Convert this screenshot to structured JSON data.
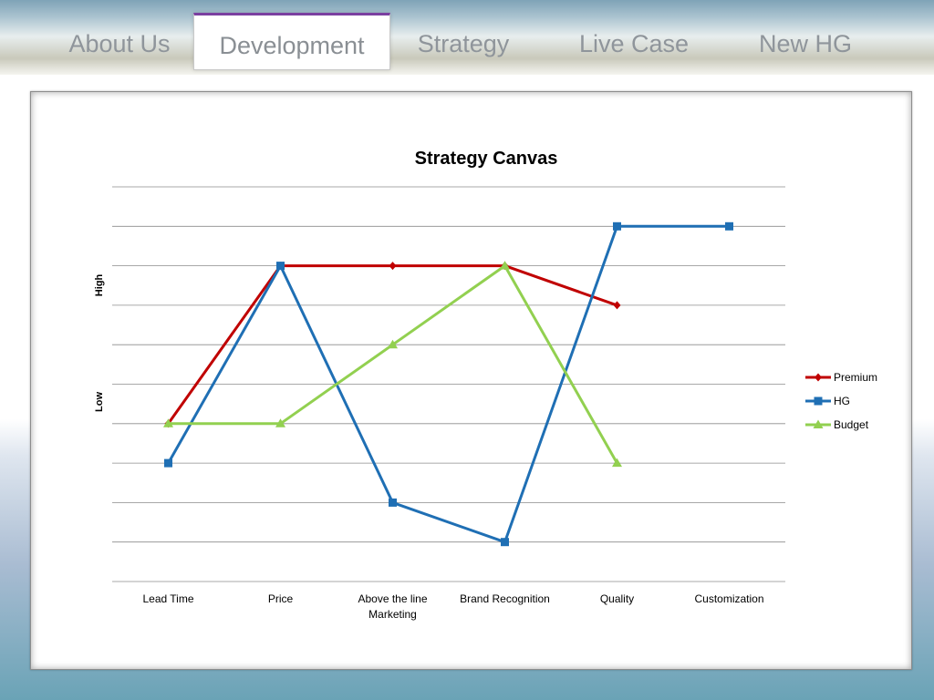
{
  "nav": {
    "tabs": [
      {
        "label": "About Us",
        "active": false
      },
      {
        "label": "Development",
        "active": true
      },
      {
        "label": "Strategy",
        "active": false
      },
      {
        "label": "Live Case",
        "active": false
      },
      {
        "label": "New HG",
        "active": false
      }
    ]
  },
  "chart_data": {
    "type": "line",
    "title": "Strategy Canvas",
    "ylabel_high": "High",
    "ylabel_low": "Low",
    "categories": [
      [
        "Lead Time"
      ],
      [
        "Price"
      ],
      [
        "Above the line",
        "Marketing"
      ],
      [
        "Brand Recognition"
      ],
      [
        "Quality"
      ],
      [
        "Customization"
      ]
    ],
    "ylim": [
      0,
      10
    ],
    "grid": true,
    "legend_position": "right",
    "series": [
      {
        "name": "Premium",
        "color": "#c00000",
        "marker": "diamond",
        "values": [
          4,
          8,
          8,
          8,
          7,
          null
        ]
      },
      {
        "name": "HG",
        "color": "#1f6fb4",
        "marker": "square",
        "values": [
          3,
          8,
          2,
          1,
          9,
          9
        ]
      },
      {
        "name": "Budget",
        "color": "#92d050",
        "marker": "triangle",
        "values": [
          4,
          4,
          6,
          8,
          3,
          null
        ]
      }
    ]
  }
}
